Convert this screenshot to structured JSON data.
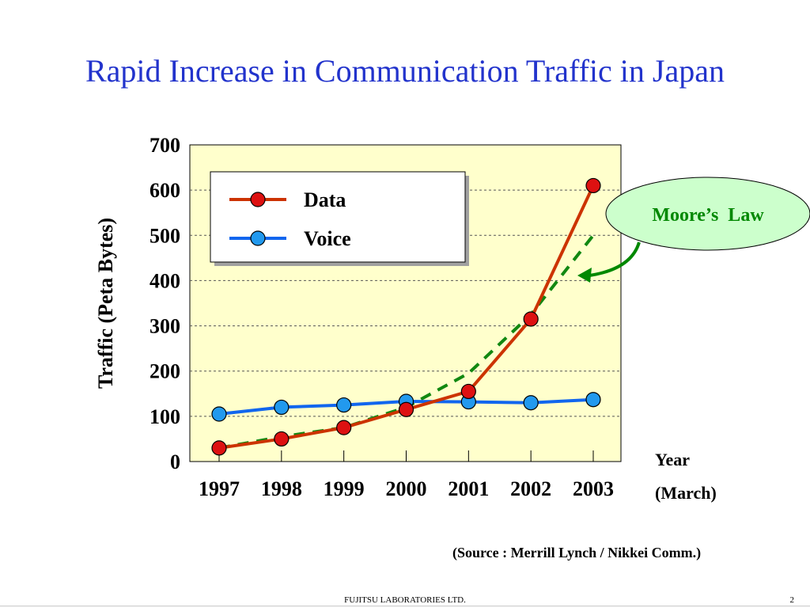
{
  "slide": {
    "title": "Rapid Increase in Communication Traffic in Japan",
    "source": "(Source : Merrill Lynch / Nikkei Comm.)",
    "footer": "FUJITSU LABORATORIES LTD.",
    "page_number": "2"
  },
  "chart_data": {
    "type": "line",
    "title": "",
    "xlabel": "Year",
    "xlabel_sub": "(March)",
    "ylabel": "Traffic (Peta Bytes)",
    "ylim": [
      0,
      700
    ],
    "yticks": [
      0,
      100,
      200,
      300,
      400,
      500,
      600,
      700
    ],
    "categories": [
      "1997",
      "1998",
      "1999",
      "2000",
      "2001",
      "2002",
      "2003"
    ],
    "grid": true,
    "legend_position": "top-left",
    "series": [
      {
        "name": "Data",
        "color": "#cc3300",
        "marker_color": "#dd1111",
        "values": [
          30,
          50,
          75,
          115,
          155,
          315,
          610
        ]
      },
      {
        "name": "Voice",
        "color": "#1166ee",
        "marker_color": "#2299ee",
        "values": [
          105,
          120,
          125,
          133,
          132,
          130,
          137
        ]
      }
    ],
    "trend": {
      "values": [
        30,
        55,
        75,
        120,
        195,
        325,
        500
      ],
      "color": "#118811",
      "style": "dashed"
    },
    "annotation": {
      "text": "Moore’s  Law",
      "color": "#008800",
      "fill": "#ccffcc"
    },
    "colors": {
      "plot_background": "#ffffcc",
      "grid": "#555555"
    }
  }
}
